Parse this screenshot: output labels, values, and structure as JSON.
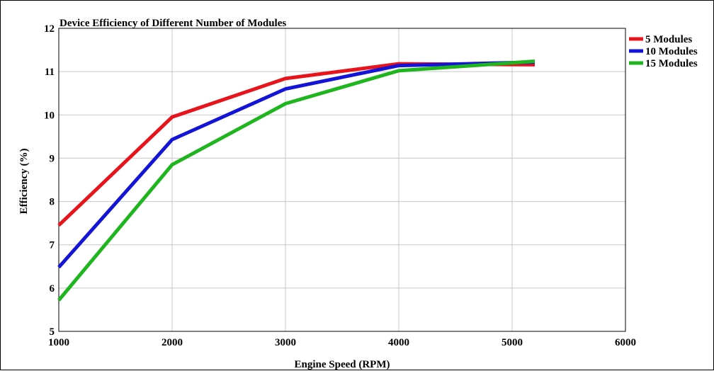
{
  "chart_data": {
    "type": "line",
    "title": "Device Efficiency of Different Number of Modules",
    "xlabel": "Engine Speed (RPM)",
    "ylabel": "Efficiency (%)",
    "xlim": [
      1000,
      6000
    ],
    "ylim": [
      5,
      12
    ],
    "xticks": [
      1000,
      2000,
      3000,
      4000,
      5000,
      6000
    ],
    "yticks": [
      5,
      6,
      7,
      8,
      9,
      10,
      11,
      12
    ],
    "grid": true,
    "legend_position": "right",
    "series": [
      {
        "name": "5 Modules",
        "color": "#e8141b",
        "x": [
          1000,
          2000,
          3000,
          4000,
          5200
        ],
        "y": [
          7.45,
          9.95,
          10.84,
          11.18,
          11.16
        ]
      },
      {
        "name": "10 Modules",
        "color": "#1414d6",
        "x": [
          1000,
          2000,
          3000,
          4000,
          5200
        ],
        "y": [
          6.48,
          9.43,
          10.6,
          11.14,
          11.22
        ]
      },
      {
        "name": "15 Modules",
        "color": "#1fb51f",
        "x": [
          1000,
          2000,
          3000,
          4000,
          5200
        ],
        "y": [
          5.72,
          8.85,
          10.26,
          11.02,
          11.24
        ]
      }
    ]
  }
}
